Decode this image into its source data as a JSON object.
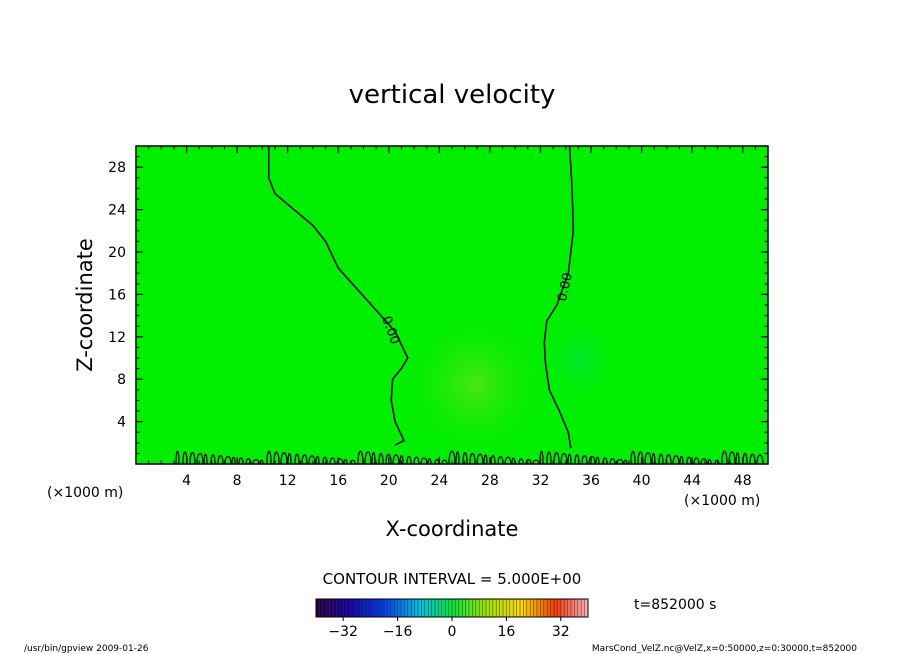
{
  "chart_data": {
    "type": "heatmap",
    "title": "vertical velocity",
    "xlabel": "X-coordinate",
    "ylabel": "Z-coordinate",
    "x_unit_left": "(×1000 m)",
    "x_unit_right": "(×1000 m)",
    "xlim": [
      0,
      50
    ],
    "ylim": [
      0,
      30
    ],
    "xticks": [
      4,
      8,
      12,
      16,
      20,
      24,
      28,
      32,
      36,
      40,
      44,
      48
    ],
    "yticks": [
      4,
      8,
      12,
      16,
      20,
      24,
      28
    ],
    "contour_interval_label": "CONTOUR INTERVAL = 5.000E+00",
    "contour_label": "0.00",
    "time_label": "t=852000 s",
    "colorbar": {
      "min": -40,
      "max": 40,
      "ticks": [
        -32,
        -16,
        0,
        16,
        32
      ],
      "tick_labels": [
        "−32",
        "−16",
        "0",
        "16",
        "32"
      ]
    },
    "zero_contours": [
      {
        "label": "0.00",
        "points": [
          [
            10.5,
            30
          ],
          [
            10.5,
            27
          ],
          [
            11,
            25.5
          ],
          [
            12,
            24.5
          ],
          [
            14,
            22.5
          ],
          [
            15,
            21
          ],
          [
            16,
            18.5
          ],
          [
            17.5,
            16.5
          ],
          [
            19,
            14.5
          ],
          [
            20.5,
            12.5
          ],
          [
            21.5,
            10
          ],
          [
            21,
            9
          ],
          [
            20.3,
            8
          ],
          [
            20.2,
            6
          ],
          [
            20.5,
            4
          ],
          [
            21.2,
            2.2
          ],
          [
            20.5,
            1.8
          ]
        ]
      },
      {
        "label": "0.00",
        "points": [
          [
            34.3,
            30
          ],
          [
            34.5,
            26
          ],
          [
            34.6,
            22
          ],
          [
            34.2,
            18
          ],
          [
            33.3,
            15
          ],
          [
            32.5,
            13.5
          ],
          [
            32.3,
            11.5
          ],
          [
            32.4,
            9.5
          ],
          [
            32.7,
            7
          ],
          [
            33.5,
            5
          ],
          [
            34.2,
            3
          ],
          [
            34.4,
            1.5
          ]
        ]
      }
    ],
    "highlights": [
      {
        "x": 27,
        "z": 7.5,
        "value": 2
      },
      {
        "x": 34.5,
        "z": 10,
        "value": -1
      }
    ]
  },
  "footer": {
    "left": "/usr/bin/gpview   2009-01-26",
    "right": "MarsCond_VelZ.nc@VelZ,x=0:50000,z=0:30000,t=852000"
  },
  "colors": {
    "background_field": "#00ee00",
    "contour": "#000000"
  }
}
